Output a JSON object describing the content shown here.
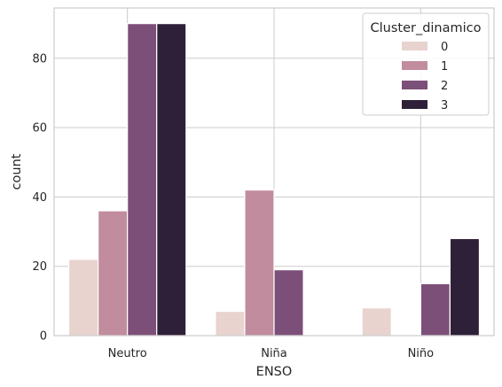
{
  "chart_data": {
    "type": "bar",
    "title": "",
    "xlabel": "ENSO",
    "ylabel": "count",
    "categories": [
      "Neutro",
      "Niña",
      "Niño"
    ],
    "ylim": [
      0,
      94.5
    ],
    "yticks": [
      0,
      20,
      40,
      60,
      80
    ],
    "grid": true,
    "legend": {
      "title": "Cluster_dinamico",
      "placement": "top-right"
    },
    "series": [
      {
        "name": "0",
        "color": "#e8d3cf",
        "values": [
          22,
          7,
          8
        ]
      },
      {
        "name": "1",
        "color": "#c18c9e",
        "values": [
          36,
          42,
          0
        ]
      },
      {
        "name": "2",
        "color": "#7c4f78",
        "values": [
          90,
          19,
          15
        ]
      },
      {
        "name": "3",
        "color": "#2f2039",
        "values": [
          90,
          0,
          28
        ]
      }
    ]
  }
}
